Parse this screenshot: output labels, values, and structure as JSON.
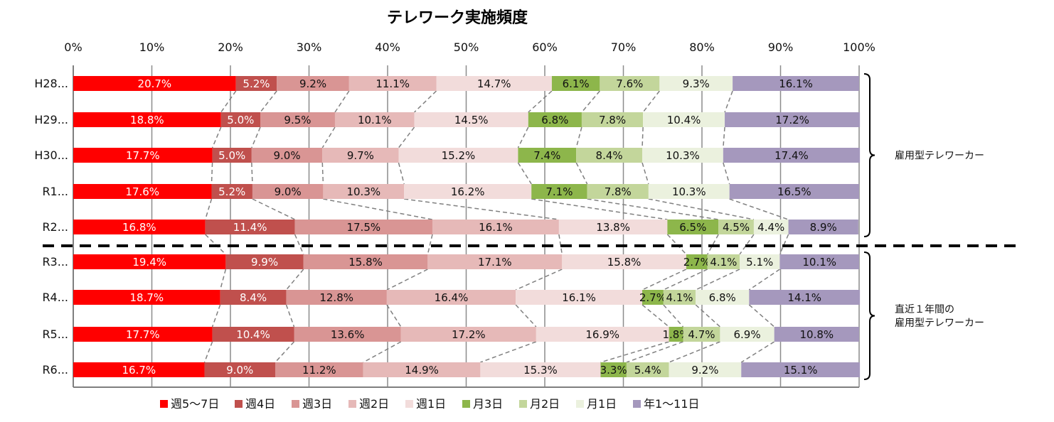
{
  "chart_data": {
    "type": "bar",
    "orientation": "horizontal",
    "stacked": "percent",
    "title": "テレワーク実施頻度",
    "x_ticks": [
      "0%",
      "10%",
      "20%",
      "30%",
      "40%",
      "50%",
      "60%",
      "70%",
      "80%",
      "90%",
      "100%"
    ],
    "xlim": [
      0,
      100
    ],
    "grid": true,
    "legend_position": "bottom",
    "categories": [
      "H28...",
      "H29...",
      "H30...",
      "R1...",
      "R2...",
      "R3...",
      "R4...",
      "R5...",
      "R6..."
    ],
    "series": [
      {
        "name": "週5〜7日",
        "color": "#ff0000",
        "label_color": "#ffffff",
        "values": [
          20.7,
          18.8,
          17.7,
          17.6,
          16.8,
          19.4,
          18.7,
          17.7,
          16.7
        ]
      },
      {
        "name": "週4日",
        "color": "#c0504d",
        "label_color": "#ffffff",
        "values": [
          5.2,
          5.0,
          5.0,
          5.2,
          11.4,
          9.9,
          8.4,
          10.4,
          9.0
        ]
      },
      {
        "name": "週3日",
        "color": "#d99594",
        "label_color": "#111111",
        "values": [
          9.2,
          9.5,
          9.0,
          9.0,
          17.5,
          15.8,
          12.8,
          13.6,
          11.2
        ]
      },
      {
        "name": "週2日",
        "color": "#e6b9b8",
        "label_color": "#111111",
        "values": [
          11.1,
          10.1,
          9.7,
          10.3,
          16.1,
          17.1,
          16.4,
          17.2,
          14.9
        ]
      },
      {
        "name": "週1日",
        "color": "#f2dcdb",
        "label_color": "#111111",
        "values": [
          14.7,
          14.5,
          15.2,
          16.2,
          13.8,
          15.8,
          16.1,
          16.9,
          15.3
        ]
      },
      {
        "name": "月3日",
        "color": "#8db64b",
        "label_color": "#111111",
        "values": [
          6.1,
          6.8,
          7.4,
          7.1,
          6.5,
          2.7,
          2.7,
          1.8,
          3.3
        ]
      },
      {
        "name": "月2日",
        "color": "#c3d69b",
        "label_color": "#111111",
        "values": [
          7.6,
          7.8,
          8.4,
          7.8,
          4.5,
          4.1,
          4.1,
          4.7,
          5.4
        ]
      },
      {
        "name": "月1日",
        "color": "#ebf1de",
        "label_color": "#111111",
        "values": [
          9.3,
          10.4,
          10.3,
          10.3,
          4.4,
          5.1,
          6.8,
          6.9,
          9.2
        ]
      },
      {
        "name": "年1〜11日",
        "color": "#a598bd",
        "label_color": "#111111",
        "values": [
          16.1,
          17.2,
          17.4,
          16.5,
          8.9,
          10.1,
          14.1,
          10.8,
          15.1
        ]
      }
    ],
    "groups": [
      {
        "label_lines": [
          "雇用型テレワーカー"
        ],
        "from": 0,
        "to": 4
      },
      {
        "label_lines": [
          "直近１年間の",
          "雇用型テレワーカー"
        ],
        "from": 5,
        "to": 8
      }
    ],
    "divider_after_index": 4
  }
}
